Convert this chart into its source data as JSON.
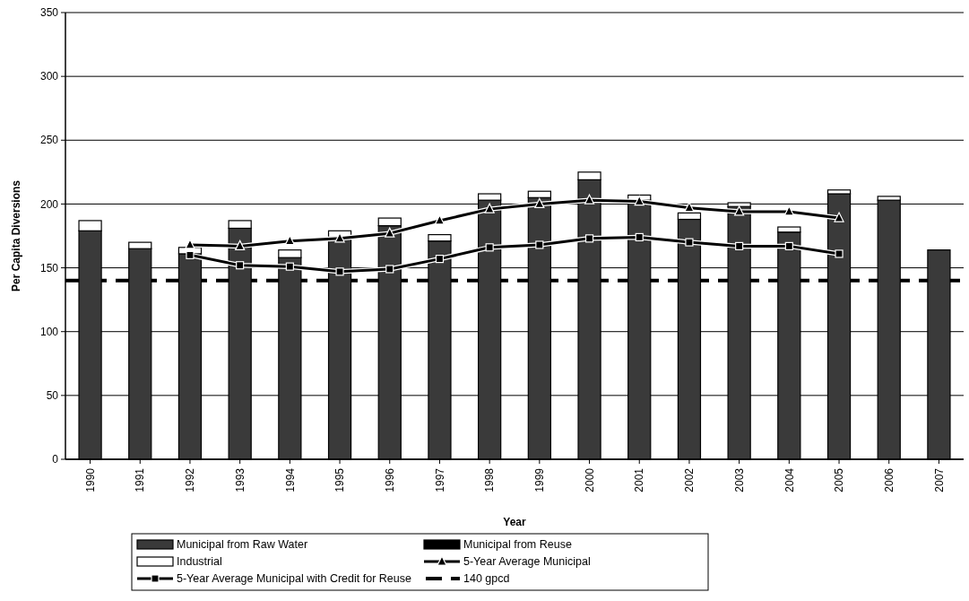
{
  "chart_data": {
    "type": "bar",
    "stacked": true,
    "xlabel": "Year",
    "ylabel": "Per Capita Diversions",
    "categories": [
      "1990",
      "1991",
      "1992",
      "1993",
      "1994",
      "1995",
      "1996",
      "1997",
      "1998",
      "1999",
      "2000",
      "2001",
      "2002",
      "2003",
      "2004",
      "2005",
      "2006",
      "2007"
    ],
    "series": [
      {
        "name": "Municipal from Raw Water",
        "color": "#3a3a3a",
        "values": [
          179,
          165,
          161,
          181,
          158,
          174,
          183,
          171,
          203,
          205,
          219,
          203,
          188,
          198,
          178,
          208,
          203,
          164
        ]
      },
      {
        "name": "Municipal from Reuse",
        "color": "#000000",
        "values": [
          null,
          null,
          null,
          null,
          null,
          null,
          null,
          null,
          null,
          null,
          null,
          null,
          null,
          null,
          null,
          null,
          null,
          null
        ]
      },
      {
        "name": "Industrial",
        "color": "#ffffff",
        "values": [
          8,
          5,
          5,
          6,
          6,
          5,
          6,
          5,
          5,
          5,
          6,
          4,
          5,
          3,
          4,
          3,
          3,
          0
        ]
      },
      {
        "name": "5-Year Average Municipal",
        "type": "line",
        "color": "#000000",
        "marker": "triangle",
        "values": [
          null,
          null,
          168,
          167,
          171,
          173,
          177,
          187,
          196,
          200,
          203,
          202,
          197,
          194,
          194,
          189,
          null,
          null
        ]
      },
      {
        "name": "5-Year Average Municipal with Credit for Reuse",
        "type": "line",
        "color": "#000000",
        "marker": "square",
        "values": [
          null,
          null,
          160,
          152,
          151,
          147,
          149,
          157,
          166,
          168,
          173,
          174,
          170,
          167,
          167,
          161,
          null,
          null
        ]
      }
    ],
    "ref_lines": [
      {
        "axis": "y",
        "value": 140,
        "label": "140 gpcd",
        "color": "#000000",
        "line_style": "dashed"
      }
    ],
    "ylim": [
      0,
      350
    ],
    "yticks": [
      0,
      50,
      100,
      150,
      200,
      250,
      300,
      350
    ],
    "grid": "y",
    "legend": "bottom"
  }
}
